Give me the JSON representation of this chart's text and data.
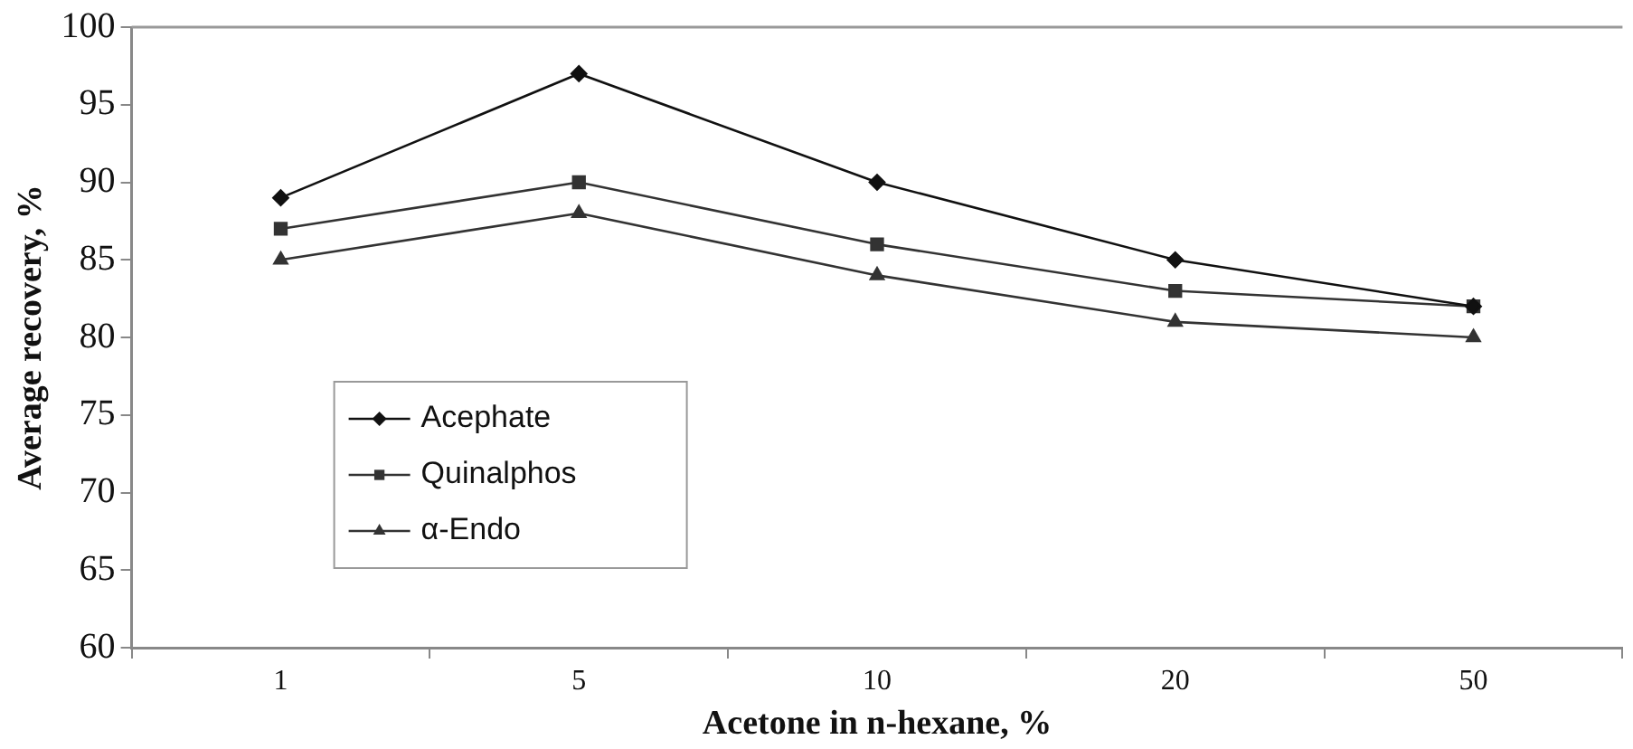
{
  "chart_data": {
    "type": "line",
    "xlabel": "Acetone in n-hexane, %",
    "ylabel": "Average recovery, %",
    "categories": [
      "1",
      "5",
      "10",
      "20",
      "50"
    ],
    "series": [
      {
        "name": "Acephate",
        "color": "#111111",
        "marker": "diamond",
        "values": [
          89,
          97,
          90,
          85,
          82
        ]
      },
      {
        "name": "Quinalphos",
        "color": "#333333",
        "marker": "square",
        "values": [
          87,
          90,
          86,
          83,
          82
        ]
      },
      {
        "name": "α-Endo",
        "color": "#333333",
        "marker": "triangle",
        "values": [
          85,
          88,
          84,
          81,
          80
        ]
      }
    ],
    "ylim": [
      60,
      100
    ],
    "yticks": [
      60,
      65,
      70,
      75,
      80,
      85,
      90,
      95,
      100
    ],
    "grid": false,
    "legend": "bottom left",
    "line_style": "solid"
  }
}
